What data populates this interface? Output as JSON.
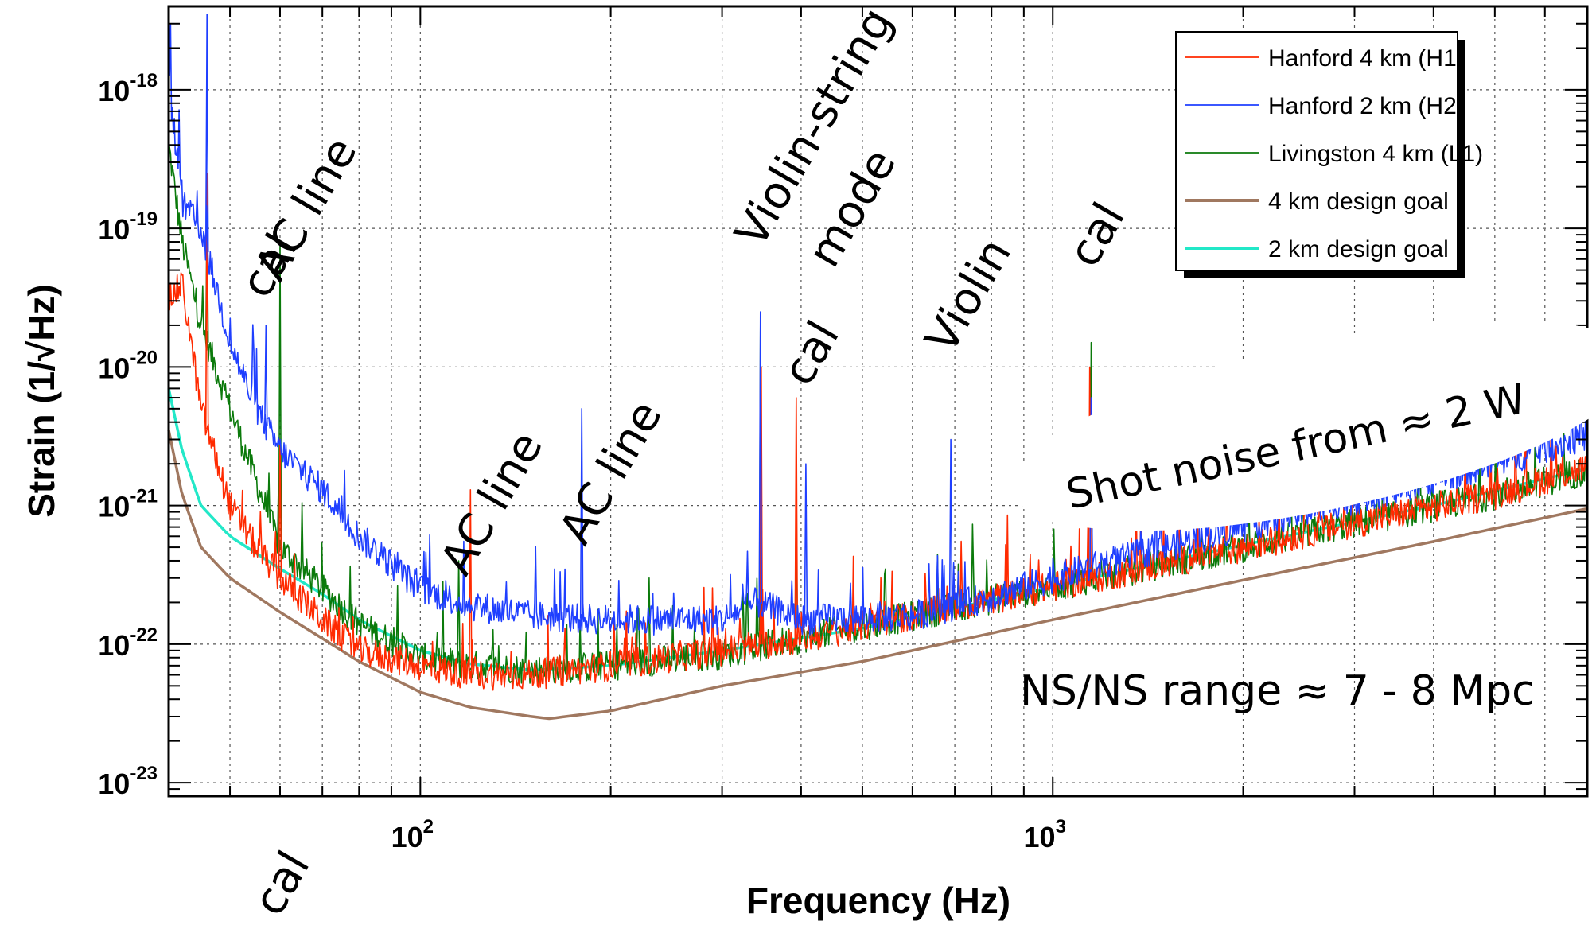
{
  "chart_data": {
    "type": "line",
    "xlabel": "Frequency (Hz)",
    "ylabel": "Strain (1/√Hz)",
    "x_scale": "log",
    "y_scale": "log",
    "xlim": [
      40,
      7000
    ],
    "ylim": [
      8e-24,
      4e-18
    ],
    "grid": true,
    "legend_position": "top-right",
    "x_ticks": [
      {
        "value": 100,
        "base": "10",
        "exp": "2"
      },
      {
        "value": 1000,
        "base": "10",
        "exp": "3"
      }
    ],
    "y_ticks": [
      {
        "value": 1e-23,
        "base": "10",
        "exp": "-23"
      },
      {
        "value": 1e-22,
        "base": "10",
        "exp": "-22"
      },
      {
        "value": 1e-21,
        "base": "10",
        "exp": "-21"
      },
      {
        "value": 1e-20,
        "base": "10",
        "exp": "-20"
      },
      {
        "value": 1e-19,
        "base": "10",
        "exp": "-19"
      },
      {
        "value": 1e-18,
        "base": "10",
        "exp": "-18"
      }
    ],
    "series": [
      {
        "name": "Hanford 4 km (H1)",
        "color": "#ff2a00",
        "x": [
          40,
          42,
          45,
          50,
          55,
          60,
          70,
          80,
          100,
          120,
          150,
          200,
          300,
          400,
          600,
          800,
          1000,
          1500,
          2000,
          3000,
          5000,
          7000
        ],
        "y": [
          3e-20,
          4e-20,
          5e-21,
          1e-21,
          5e-22,
          3e-22,
          1.5e-22,
          9e-23,
          7e-23,
          6e-23,
          6e-23,
          7e-23,
          9e-23,
          1.1e-22,
          1.6e-22,
          2.1e-22,
          2.6e-22,
          3.8e-22,
          5e-22,
          7.5e-22,
          1.2e-21,
          1.9e-21
        ],
        "peaks": [
          {
            "x": 46,
            "y": 2.5e-19
          },
          {
            "x": 60,
            "y": 3e-21
          },
          {
            "x": 120,
            "y": 1.3e-21
          },
          {
            "x": 346,
            "y": 1e-20
          },
          {
            "x": 393,
            "y": 6e-21
          },
          {
            "x": 1144,
            "y": 1e-20
          }
        ]
      },
      {
        "name": "Hanford 2 km (H2)",
        "color": "#1f3fff",
        "x": [
          40,
          42,
          45,
          50,
          55,
          60,
          70,
          80,
          100,
          120,
          150,
          200,
          300,
          340,
          400,
          600,
          800,
          1000,
          1500,
          2000,
          3000,
          5000,
          7000
        ],
        "y": [
          1.2e-18,
          1.5e-19,
          1e-19,
          1.5e-20,
          5e-21,
          2.5e-21,
          1.3e-21,
          6e-22,
          2.5e-22,
          1.9e-22,
          1.6e-22,
          1.5e-22,
          1.5e-22,
          2e-22,
          1.5e-22,
          1.6e-22,
          2.2e-22,
          3e-22,
          5e-22,
          7e-22,
          1.1e-21,
          2e-21,
          3.2e-21
        ],
        "peaks": [
          {
            "x": 46,
            "y": 3.5e-18
          },
          {
            "x": 57,
            "y": 2e-20
          },
          {
            "x": 180,
            "y": 5e-21
          },
          {
            "x": 345,
            "y": 2.5e-20
          },
          {
            "x": 407,
            "y": 2e-21
          },
          {
            "x": 690,
            "y": 3e-21
          },
          {
            "x": 1150,
            "y": 6e-21
          },
          {
            "x": 4550,
            "y": 8e-21
          },
          {
            "x": 5480,
            "y": 7e-21
          }
        ]
      },
      {
        "name": "Livingston 4 km (L1)",
        "color": "#0b7a0b",
        "x": [
          40,
          42,
          45,
          50,
          55,
          60,
          70,
          80,
          100,
          120,
          150,
          200,
          300,
          400,
          600,
          800,
          1000,
          1500,
          2000,
          3000,
          5000,
          7000
        ],
        "y": [
          4e-19,
          8e-20,
          2e-20,
          5e-21,
          1.5e-21,
          5e-22,
          2.5e-22,
          1.4e-22,
          8e-23,
          7e-23,
          6.5e-23,
          7e-23,
          8.5e-23,
          1.1e-22,
          1.6e-22,
          2.1e-22,
          2.6e-22,
          3.8e-22,
          5e-22,
          7.5e-22,
          1.2e-21,
          1.8e-21
        ],
        "peaks": [
          {
            "x": 46,
            "y": 1.5e-19
          },
          {
            "x": 60,
            "y": 8e-20
          },
          {
            "x": 115,
            "y": 4e-22
          },
          {
            "x": 230,
            "y": 3e-22
          },
          {
            "x": 345,
            "y": 2e-20
          },
          {
            "x": 393,
            "y": 1.5e-21
          },
          {
            "x": 1150,
            "y": 1.5e-20
          }
        ]
      },
      {
        "name": "4 km design goal",
        "color": "#a07860",
        "x": [
          40,
          42,
          45,
          50,
          60,
          70,
          80,
          100,
          120,
          150,
          160,
          200,
          300,
          500,
          1000,
          2000,
          4000,
          7000
        ],
        "y": [
          3.5e-21,
          1.2e-21,
          5e-22,
          3e-22,
          1.7e-22,
          1.1e-22,
          7.5e-23,
          4.5e-23,
          3.5e-23,
          3e-23,
          2.9e-23,
          3.3e-23,
          5e-23,
          7.5e-23,
          1.5e-22,
          2.9e-22,
          5.5e-22,
          9.5e-22
        ]
      },
      {
        "name": "2 km design goal",
        "color": "#22e8c8",
        "x": [
          40,
          42,
          45,
          50,
          60,
          70,
          80,
          100,
          120,
          150,
          200,
          300,
          500,
          1000,
          2000,
          4000,
          7000
        ],
        "y": [
          7e-21,
          2.5e-21,
          1e-21,
          6e-22,
          3.5e-22,
          2.3e-22,
          1.5e-22,
          9e-23,
          7.2e-23,
          6.5e-23,
          7e-23,
          9e-23,
          1.3e-22,
          2.6e-22,
          5.2e-22,
          1e-21,
          1.85e-21
        ]
      }
    ],
    "annotations": [
      {
        "text": "cal",
        "x": 57,
        "y": 3e-20,
        "rotate": -60
      },
      {
        "text": "AC line",
        "x": 60,
        "y": 4e-20,
        "rotate": -60
      },
      {
        "text": "AC line",
        "x": 118,
        "y": 3e-22,
        "rotate": -60
      },
      {
        "text": "AC line",
        "x": 182,
        "y": 5e-22,
        "rotate": -60
      },
      {
        "text": "Violin-string",
        "x": 345,
        "y": 7e-20,
        "rotate": -60
      },
      {
        "text": "mode",
        "x": 450,
        "y": 5e-20,
        "rotate": -60
      },
      {
        "text": "cal",
        "x": 410,
        "y": 7e-21,
        "rotate": -60
      },
      {
        "text": "Violin",
        "x": 690,
        "y": 1.2e-20,
        "rotate": -60
      },
      {
        "text": "cal",
        "x": 1160,
        "y": 5e-20,
        "rotate": -60
      },
      {
        "text": "cal",
        "x": 50,
        "y": 2.5e-24,
        "rotate": -60
      },
      {
        "text": "Shot noise from ≈ 2 W",
        "x": 1300,
        "y": 4e-21,
        "rotate": -12
      },
      {
        "text": "NS/NS range ≈ 7 - 8 Mpc",
        "x": 1000,
        "y": 4.5e-23,
        "rotate": 0
      }
    ]
  }
}
